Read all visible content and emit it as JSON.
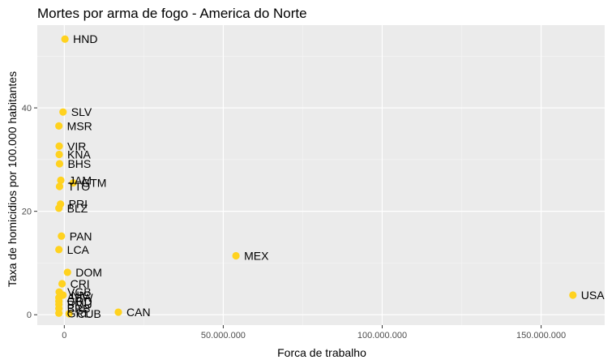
{
  "chart_data": {
    "type": "scatter",
    "title": "Mortes por arma de fogo - America do Norte",
    "xlabel": "Forca de trabalho",
    "ylabel": "Taxa de homicidios por 100.000 habitantes",
    "xlim": [
      -8500000,
      170000000
    ],
    "ylim": [
      -2,
      56
    ],
    "x_ticks": [
      0,
      50000000,
      100000000,
      150000000
    ],
    "x_tick_labels": [
      "0",
      "50.000.000",
      "100.000.000",
      "150.000.000"
    ],
    "y_ticks": [
      0,
      20,
      40
    ],
    "y_tick_labels": [
      "0",
      "20",
      "40"
    ],
    "grid": true,
    "legend": "none",
    "colors": {
      "panel_background": "#ebebeb",
      "grid_major": "#ffffff",
      "grid_minor": "#f5f5f5",
      "point": "#ffd21f"
    },
    "points": [
      {
        "label": "HND",
        "x": 200000,
        "y": 53.3
      },
      {
        "label": "SLV",
        "x": -400000,
        "y": 39.2
      },
      {
        "label": "MSR",
        "x": -1700000,
        "y": 36.5
      },
      {
        "label": "VIR",
        "x": -1600000,
        "y": 32.6
      },
      {
        "label": "KNA",
        "x": -1600000,
        "y": 31.0
      },
      {
        "label": "BHS",
        "x": -1500000,
        "y": 29.2
      },
      {
        "label": "JAM",
        "x": -1100000,
        "y": 26.0
      },
      {
        "label": "GTM",
        "x": 2800000,
        "y": 25.5
      },
      {
        "label": "TTO",
        "x": -1500000,
        "y": 24.8
      },
      {
        "label": "PRI",
        "x": -1200000,
        "y": 21.4
      },
      {
        "label": "BLZ",
        "x": -1700000,
        "y": 20.6
      },
      {
        "label": "PAN",
        "x": -900000,
        "y": 15.2
      },
      {
        "label": "LCA",
        "x": -1700000,
        "y": 12.6
      },
      {
        "label": "MEX",
        "x": 54000000,
        "y": 11.4
      },
      {
        "label": "DOM",
        "x": 1000000,
        "y": 8.2
      },
      {
        "label": "CRI",
        "x": -700000,
        "y": 6.0
      },
      {
        "label": "VGB",
        "x": -1600000,
        "y": 4.4
      },
      {
        "label": "NIC",
        "x": -400000,
        "y": 3.8
      },
      {
        "label": "ABW",
        "x": -1700000,
        "y": 3.3
      },
      {
        "label": "GRD",
        "x": -1700000,
        "y": 2.6
      },
      {
        "label": "BMU",
        "x": -1700000,
        "y": 2.0
      },
      {
        "label": "BRB",
        "x": -1700000,
        "y": 1.2
      },
      {
        "label": "GRL",
        "x": -1700000,
        "y": 0.3
      },
      {
        "label": "CUB",
        "x": 1500000,
        "y": 0.2
      },
      {
        "label": "CAN",
        "x": 17000000,
        "y": 0.5
      },
      {
        "label": "USA",
        "x": 160000000,
        "y": 3.8
      }
    ]
  }
}
